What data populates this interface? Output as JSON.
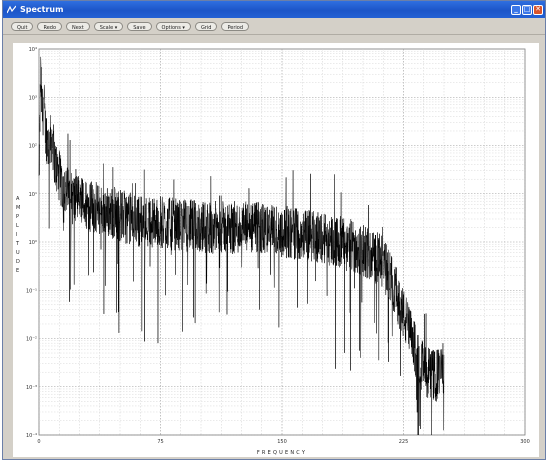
{
  "window": {
    "title": "Spectrum",
    "buttons": [
      "minimize",
      "maximize",
      "close"
    ]
  },
  "toolbar": {
    "items": [
      "Quit",
      "Redo",
      "Next",
      "Scale ▾",
      "Save",
      "Options ▾",
      "Grid",
      "Period"
    ]
  },
  "chart_data": {
    "type": "line",
    "title": "",
    "xlabel": "FREQUENCY",
    "ylabel": "AMPLITUDE",
    "x_ticks": [
      "0",
      "75",
      "150",
      "225",
      "300"
    ],
    "y_ticks": [
      "10⁻⁴",
      "10⁻³",
      "10⁻²",
      "10⁻¹",
      "10⁰",
      "10¹",
      "10²",
      "10³",
      "10⁴"
    ],
    "xlim": [
      0,
      300
    ],
    "ylim_log10": [
      -4,
      4
    ],
    "y_scale": "log",
    "grid": true,
    "series": [
      {
        "color": "#000000",
        "x": [
          0,
          1,
          2,
          3,
          4,
          6,
          8,
          10,
          14,
          20,
          30,
          45,
          60,
          75,
          90,
          105,
          120,
          135,
          150,
          165,
          180,
          195,
          210,
          215,
          220,
          225,
          230,
          235,
          240,
          245,
          250
        ],
        "y_log10": [
          1.2,
          3.5,
          2.6,
          2.9,
          2.3,
          2.0,
          2.2,
          1.6,
          1.2,
          0.9,
          0.75,
          0.6,
          0.45,
          0.4,
          0.35,
          0.3,
          0.3,
          0.28,
          0.22,
          0.15,
          0.05,
          -0.1,
          -0.35,
          -0.6,
          -1.0,
          -1.5,
          -2.0,
          -2.5,
          -2.7,
          -2.8,
          -2.6
        ]
      }
    ]
  }
}
